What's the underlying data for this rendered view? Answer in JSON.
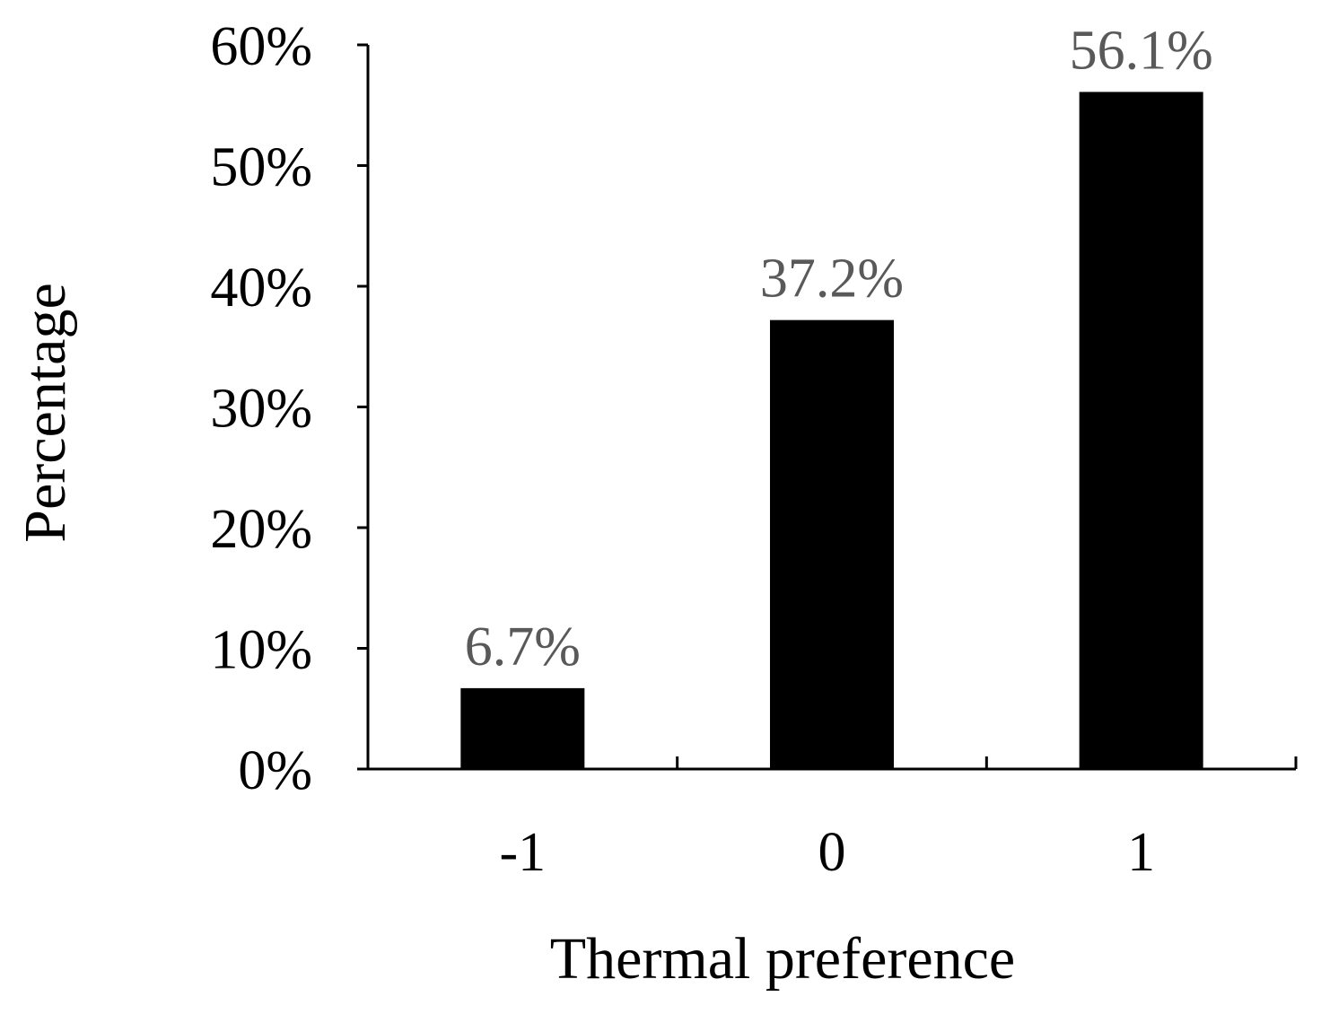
{
  "chart_data": {
    "type": "bar",
    "categories": [
      "-1",
      "0",
      "1"
    ],
    "values": [
      6.7,
      37.2,
      56.1
    ],
    "data_labels": [
      "6.7%",
      "37.2%",
      "56.1%"
    ],
    "xlabel": "Thermal preference",
    "ylabel": "Percentage",
    "ylim": [
      0,
      60
    ],
    "yticks": [
      0,
      10,
      20,
      30,
      40,
      50,
      60
    ],
    "ytick_labels": [
      "0%",
      "10%",
      "20%",
      "30%",
      "40%",
      "50%",
      "60%"
    ],
    "grid": false,
    "legend": "none",
    "colors": {
      "bar": "#000000",
      "data_label": "#595959",
      "axis": "#000000"
    }
  }
}
